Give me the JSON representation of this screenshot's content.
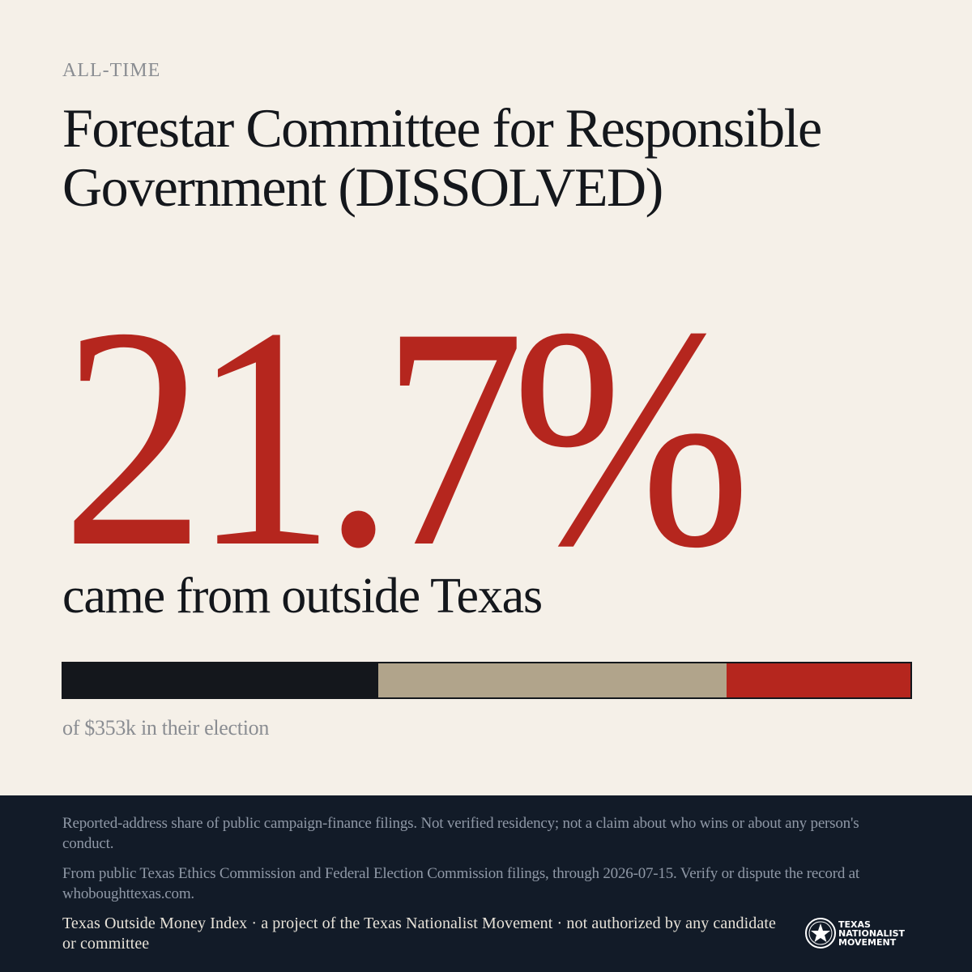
{
  "header": {
    "kicker": "ALL-TIME",
    "title": "Forestar Committee for Responsible Government (DISSOLVED)"
  },
  "stat": {
    "value": "21.7%",
    "subline": "came from outside Texas"
  },
  "bar": {
    "segments": [
      {
        "fraction": 0.372,
        "color": "#14171c"
      },
      {
        "fraction": 0.411,
        "color": "#b1a48b"
      },
      {
        "fraction": 0.217,
        "color": "#b5261e"
      }
    ]
  },
  "total_note": "of $353k in their election",
  "footer": {
    "disclaimer": "Reported-address share of public campaign-finance filings. Not verified residency; not a claim about who wins or about any person's conduct.",
    "source": "From public Texas Ethics Commission and Federal Election Commission filings, through 2026-07-15. Verify or dispute the record at whoboughttexas.com.",
    "credit": "Texas Outside Money Index · a project of the Texas Nationalist Movement · not authorized by any candidate or committee",
    "logo": {
      "line1": "TEXAS",
      "line2": "NATIONALIST",
      "line3": "MOVEMENT",
      "icon": "star-seal-icon"
    }
  },
  "colors": {
    "background": "#f5f0e8",
    "accent": "#b5261e",
    "dark": "#14171c",
    "tan": "#b1a48b",
    "footer": "#121b28"
  }
}
